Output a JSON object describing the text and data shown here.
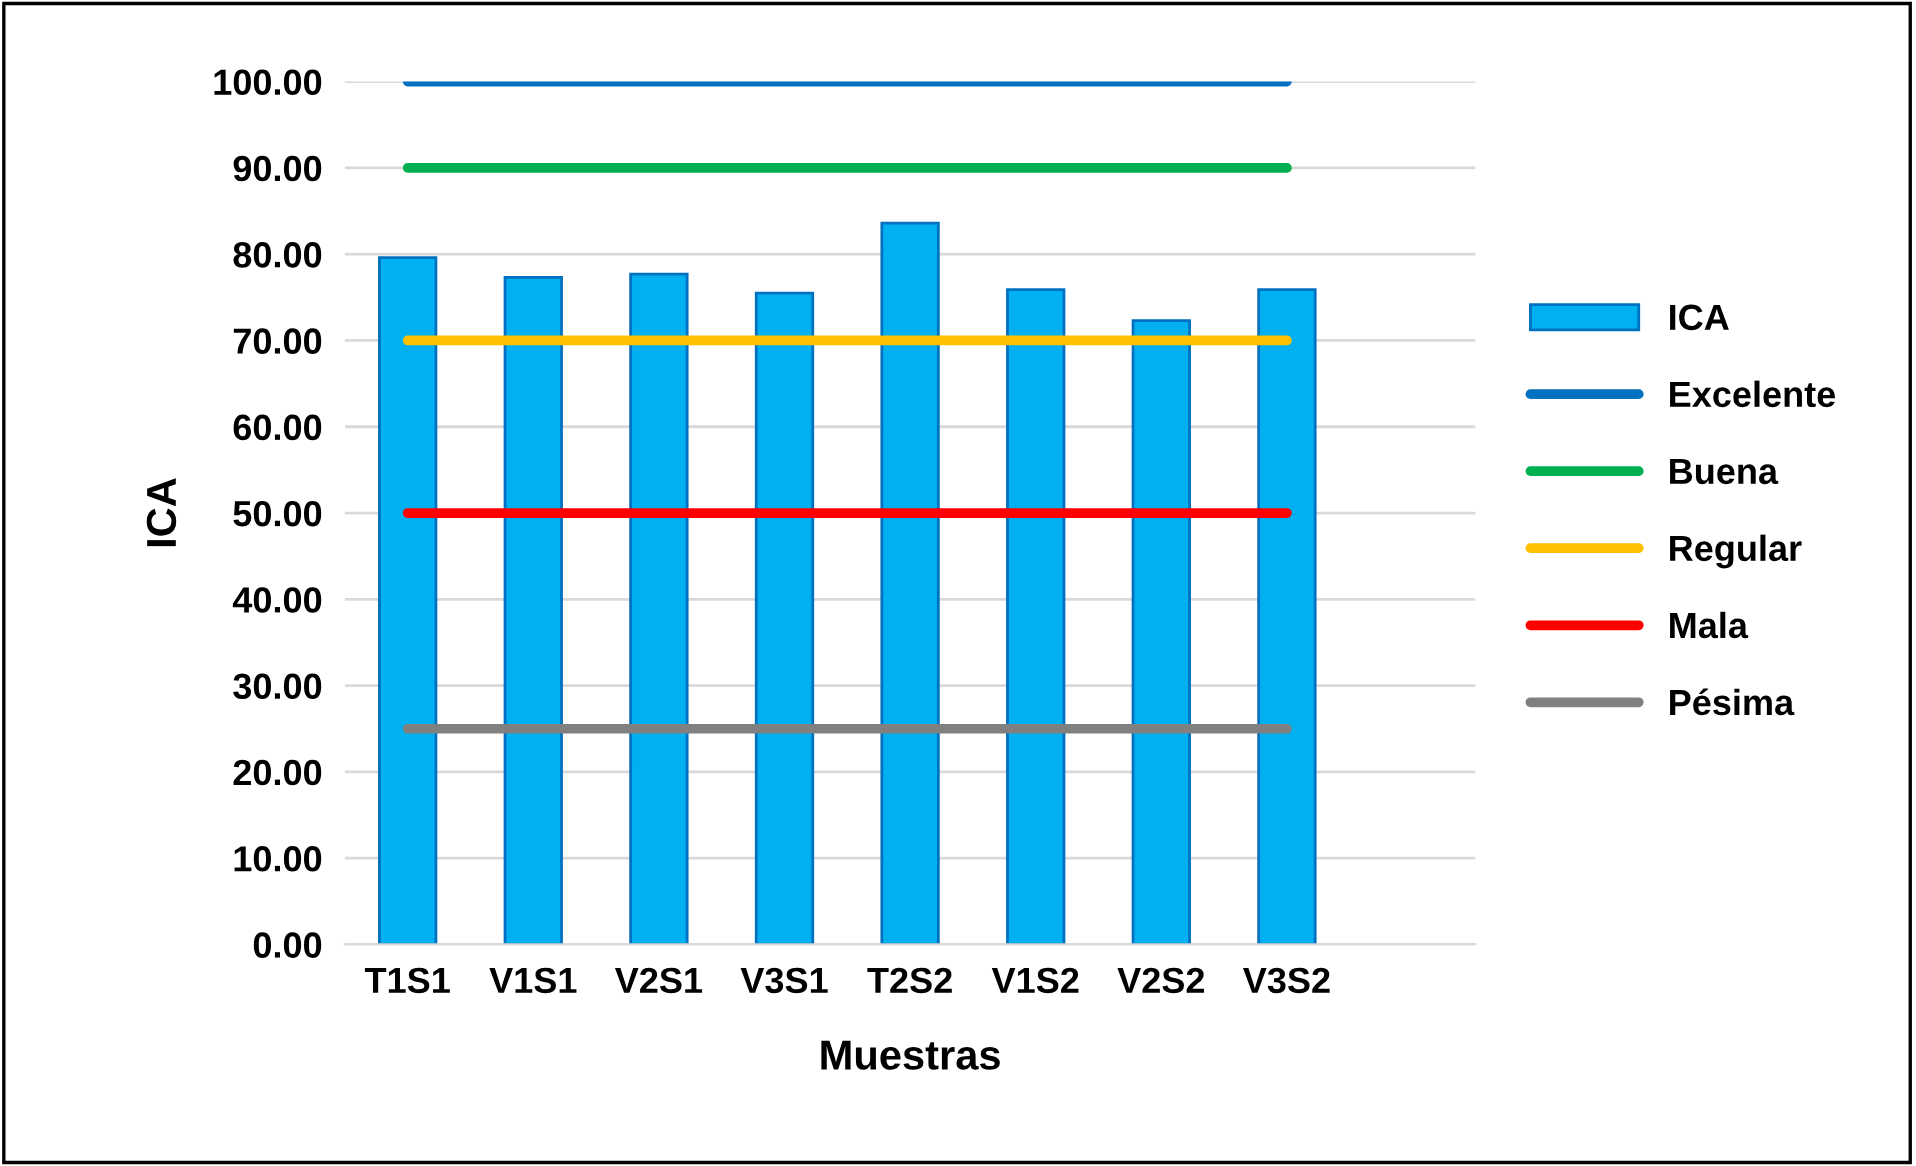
{
  "chart_data": {
    "type": "bar",
    "xlabel": "Muestras",
    "ylabel": "ICA",
    "categories": [
      "T1S1",
      "V1S1",
      "V2S1",
      "V3S1",
      "T2S2",
      "V1S2",
      "V2S2",
      "V3S2",
      null
    ],
    "series": [
      {
        "name": "ICA",
        "color": "#00b0f0",
        "values": [
          79.6,
          77.3,
          77.7,
          75.5,
          83.6,
          75.9,
          72.3,
          75.9,
          null
        ]
      },
      {
        "name": "Excelente",
        "type": "line",
        "color": "#0070c0",
        "values": [
          100,
          100,
          100,
          100,
          100,
          100,
          100,
          100,
          null
        ]
      },
      {
        "name": "Buena",
        "type": "line",
        "color": "#00b050",
        "values": [
          90,
          90,
          90,
          90,
          90,
          90,
          90,
          90,
          null
        ]
      },
      {
        "name": "Regular",
        "type": "line",
        "color": "#ffc000",
        "values": [
          70,
          70,
          70,
          70,
          70,
          70,
          70,
          70,
          null
        ]
      },
      {
        "name": "Mala",
        "type": "line",
        "color": "#ff0000",
        "values": [
          50,
          50,
          50,
          50,
          50,
          50,
          50,
          50,
          null
        ]
      },
      {
        "name": "Pésima",
        "type": "line",
        "color": "#808080",
        "values": [
          25,
          25,
          25,
          25,
          25,
          25,
          25,
          25,
          null
        ]
      }
    ],
    "ylim": [
      0,
      100
    ],
    "yticks": [
      {
        "value": 0,
        "label": "0.00"
      },
      {
        "value": 10,
        "label": "10.00"
      },
      {
        "value": 20,
        "label": "20.00"
      },
      {
        "value": 30,
        "label": "30.00"
      },
      {
        "value": 40,
        "label": "40.00"
      },
      {
        "value": 50,
        "label": "50.00"
      },
      {
        "value": 60,
        "label": "60.00"
      },
      {
        "value": 70,
        "label": "70.00"
      },
      {
        "value": 80,
        "label": "80.00"
      },
      {
        "value": 90,
        "label": "90.00"
      },
      {
        "value": 100,
        "label": "100.00"
      }
    ],
    "grid": "y",
    "legend": "right",
    "marker": "none",
    "line_style": "solid"
  }
}
